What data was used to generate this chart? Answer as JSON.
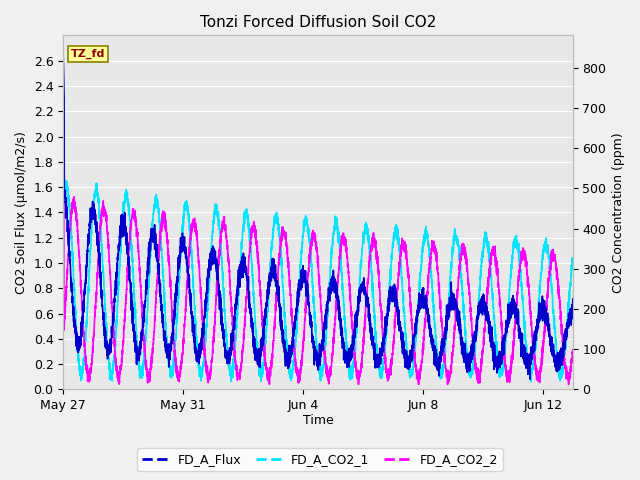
{
  "title": "Tonzi Forced Diffusion Soil CO2",
  "xlabel": "Time",
  "ylabel_left": "CO2 Soil Flux (μmol/m2/s)",
  "ylabel_right": "CO2 Concentration (ppm)",
  "ylim_left": [
    0.0,
    2.8
  ],
  "ylim_right": [
    0,
    880
  ],
  "background_color": "#e8e8e8",
  "fig_color": "#f0f0f0",
  "grid_color": "#ffffff",
  "colors": {
    "FD_A_Flux": "#0000CD",
    "FD_A_CO2_1": "#00E5FF",
    "FD_A_CO2_2": "#FF00FF"
  },
  "linewidths": {
    "FD_A_Flux": 1.2,
    "FD_A_CO2_1": 1.2,
    "FD_A_CO2_2": 1.2
  },
  "annotation_text": "TZ_fd",
  "annotation_bg": "#FFFF99",
  "annotation_border": "#8B8000",
  "annotation_text_color": "#8B0000",
  "x_tick_positions": [
    0,
    4,
    8,
    12,
    16
  ],
  "x_ticks": [
    "May 27",
    "May 31",
    "Jun 4",
    "Jun 8",
    "Jun 12"
  ],
  "yticks_left": [
    0.0,
    0.2,
    0.4,
    0.6,
    0.8,
    1.0,
    1.2,
    1.4,
    1.6,
    1.8,
    2.0,
    2.2,
    2.4,
    2.6
  ],
  "yticks_right": [
    0,
    100,
    200,
    300,
    400,
    500,
    600,
    700,
    800
  ],
  "total_days": 17,
  "n_points": 4096
}
